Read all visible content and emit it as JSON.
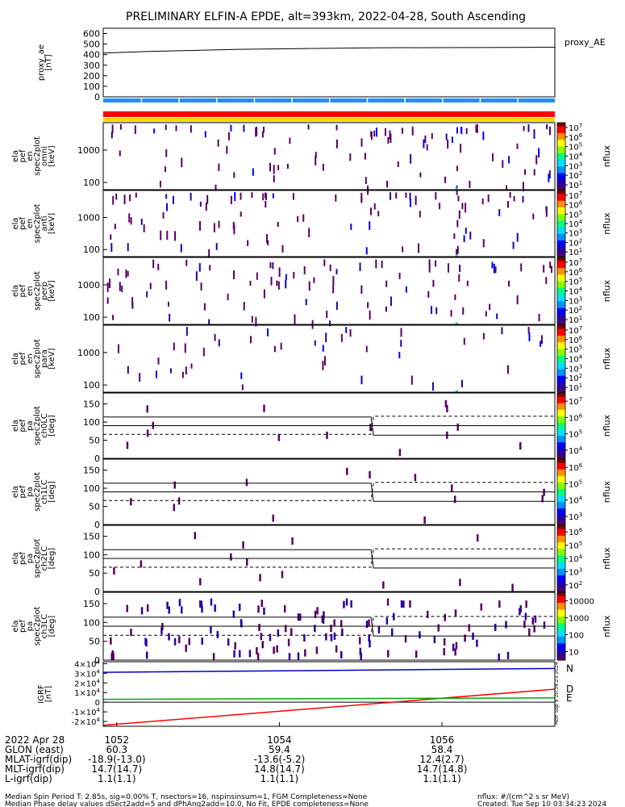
{
  "title": "PRELIMINARY ELFIN-A EPDE, alt=393km, 2022-04-28, South Ascending",
  "colors": {
    "frame": "#000000",
    "eclipse_bar": "#1e90ff",
    "ok_bar_red": "#ff0000",
    "ok_bar_yellow": "#ffd700",
    "grf_n": "#0000cc",
    "grf_d": "#ff0000",
    "grf_e": "#00aa00"
  },
  "chart_data": [
    {
      "type": "line",
      "id": "proxy_ae",
      "ylabel": "proxy_ae [nT]",
      "yticks": [
        "0",
        "100",
        "200",
        "300",
        "400",
        "500",
        "600"
      ],
      "ylim": [
        0,
        650
      ],
      "legend": "proxy_AE",
      "x": [
        0,
        0.1,
        0.3,
        0.6,
        1.0
      ],
      "values": [
        415,
        430,
        450,
        465,
        470
      ]
    },
    {
      "type": "heatmap",
      "id": "pef_en_omni",
      "ylabel": [
        "ela",
        "pef",
        "en",
        "spec2plot",
        "omni",
        "[keV]"
      ],
      "yticks": [
        "100",
        "1000"
      ],
      "ylim": [
        60,
        7000
      ],
      "colorbar": {
        "label": "nflux",
        "ticks": [
          "10^1",
          "10^2",
          "10^3",
          "10^4",
          "10^5",
          "10^6",
          "10^7"
        ]
      }
    },
    {
      "type": "heatmap",
      "id": "pef_en_anti",
      "ylabel": [
        "ela",
        "pef",
        "en",
        "spec2plot",
        "anti",
        "[keV]"
      ],
      "yticks": [
        "100",
        "1000"
      ],
      "ylim": [
        60,
        7000
      ],
      "colorbar": {
        "label": "nflux",
        "ticks": [
          "10^1",
          "10^2",
          "10^3",
          "10^4",
          "10^5",
          "10^6",
          "10^7"
        ]
      }
    },
    {
      "type": "heatmap",
      "id": "pef_en_perp",
      "ylabel": [
        "ela",
        "pef",
        "en",
        "spec2plot",
        "perp",
        "[keV]"
      ],
      "yticks": [
        "100",
        "1000"
      ],
      "ylim": [
        60,
        7000
      ],
      "colorbar": {
        "label": "nflux",
        "ticks": [
          "10^1",
          "10^2",
          "10^3",
          "10^4",
          "10^5",
          "10^6",
          "10^7"
        ]
      }
    },
    {
      "type": "heatmap",
      "id": "pef_en_para",
      "ylabel": [
        "ela",
        "pef",
        "en",
        "spec2plot",
        "para",
        "[keV]"
      ],
      "yticks": [
        "100",
        "1000"
      ],
      "ylim": [
        60,
        7000
      ],
      "colorbar": {
        "label": "nflux",
        "ticks": [
          "10^1",
          "10^2",
          "10^3",
          "10^4",
          "10^5",
          "10^6",
          "10^7"
        ]
      }
    },
    {
      "type": "heatmap",
      "id": "pef_pa_ch0LC",
      "ylabel": [
        "ela",
        "pef",
        "pa",
        "spec2plot",
        "ch0LC",
        "[deg]"
      ],
      "yticks": [
        "0",
        "50",
        "100",
        "150"
      ],
      "ylim": [
        0,
        180
      ],
      "colorbar": {
        "label": "nflux",
        "ticks": [
          "10^4",
          "10^5",
          "10^6",
          "10^7"
        ]
      }
    },
    {
      "type": "heatmap",
      "id": "pef_pa_ch1LC",
      "ylabel": [
        "ela",
        "pef",
        "pa",
        "spec2plot",
        "ch1LC",
        "[deg]"
      ],
      "yticks": [
        "0",
        "50",
        "100",
        "150"
      ],
      "ylim": [
        0,
        180
      ],
      "colorbar": {
        "label": "nflux",
        "ticks": [
          "10^3",
          "10^4",
          "10^5",
          "10^6"
        ]
      }
    },
    {
      "type": "heatmap",
      "id": "pef_pa_ch2LC",
      "ylabel": [
        "ela",
        "pef",
        "pa",
        "spec2plot",
        "ch2LC",
        "[deg]"
      ],
      "yticks": [
        "0",
        "50",
        "100",
        "150"
      ],
      "ylim": [
        0,
        180
      ],
      "colorbar": {
        "label": "nflux",
        "ticks": [
          "10^2",
          "10^3",
          "10^4",
          "10^5",
          "10^6"
        ]
      }
    },
    {
      "type": "heatmap",
      "id": "pef_pa_ch3LC",
      "ylabel": [
        "ela",
        "pef",
        "pa",
        "spec2plot",
        "ch3LC",
        "[deg]"
      ],
      "yticks": [
        "0",
        "50",
        "100",
        "150"
      ],
      "ylim": [
        0,
        180
      ],
      "colorbar": {
        "label": "nflux",
        "ticks": [
          "10",
          "100",
          "1000",
          "10000"
        ]
      }
    },
    {
      "type": "line",
      "id": "igrf",
      "ylabel": [
        "IGRF",
        "[nT]"
      ],
      "yticks": [
        "-2×10^4",
        "-1×10^4",
        "0",
        "1×10^4",
        "2×10^4",
        "3×10^4",
        "4×10^4"
      ],
      "ylim": [
        -25000,
        42000
      ],
      "series": [
        {
          "name": "N",
          "x": [
            0,
            1
          ],
          "values": [
            31000,
            35000
          ]
        },
        {
          "name": "D",
          "x": [
            0,
            1
          ],
          "values": [
            -24000,
            13500
          ]
        },
        {
          "name": "E",
          "x": [
            0,
            1
          ],
          "values": [
            3000,
            4500
          ]
        }
      ]
    }
  ],
  "x_axis": {
    "ticks": [
      {
        "label": "1052",
        "frac": 0.0,
        "glon": "60.3",
        "mlat": "-18.9(-13.0)",
        "mlt": "14.7(14.7)",
        "l": "1.1(1.1)"
      },
      {
        "label": "1054",
        "frac": 0.5,
        "glon": "59.4",
        "mlat": "-13.6(-5.2)",
        "mlt": "14.8(14.7)",
        "l": "1.1(1.1)"
      },
      {
        "label": "1056",
        "frac": 1.0,
        "glon": "58.4",
        "mlat": "12.4(2.7)",
        "mlt": "14.7(14.8)",
        "l": "1.1(1.1)"
      }
    ],
    "row_labels": {
      "date": "2022 Apr 28",
      "glon": "GLON (east)",
      "mlat": "MLAT-igrf(dip)",
      "mlt": "MLT-igrf(dip)",
      "l": "L-igrf(dip)"
    }
  },
  "footer": {
    "line1": "Median Spin Period T: 2.85s, sig=0.00% T, nsectors=16, nspinsinsum=1, FGM Completeness=None",
    "line2": "Median Phase delay values dSect2add=5 and dPhAng2add=10.0, No Fit, EPDE completeness=None",
    "units": "nflux: #/(cm^2 s sr MeV)",
    "created": "Created: Tue Sep 10 03:34:23 2024",
    "stamp": "Mon Sep 9 20:34:23 2024"
  }
}
